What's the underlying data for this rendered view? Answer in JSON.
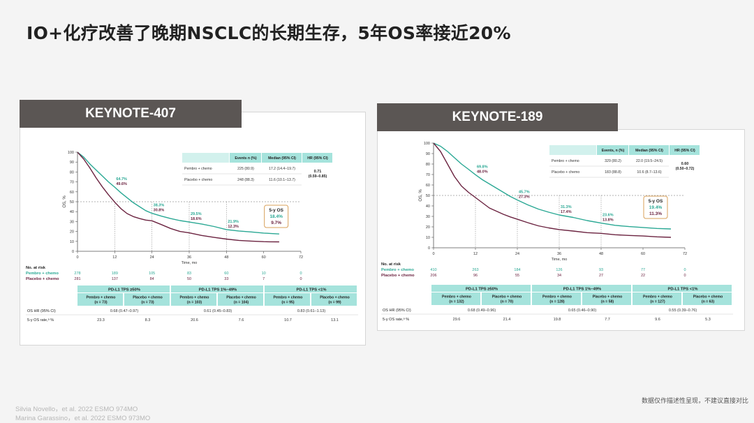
{
  "slide": {
    "title": "IO+化疗改善了晚期NSCLC的长期生存，5年OS率接近20%",
    "disclaimer": "数据仅作描述性呈现，不建议直接对比",
    "references": [
      "Silvia Novello，et al. 2022 ESMO 974MO",
      "Marina Garassino，et al. 2022 ESMO 973MO"
    ]
  },
  "colors": {
    "pembro": "#2aa894",
    "placebo": "#6b2340",
    "tab_bg": "#5b5654",
    "header_bg": "#a5e3dc"
  },
  "chart_data": [
    {
      "type": "line",
      "title": "KEYNOTE-407",
      "xlabel": "Time, mo",
      "ylabel": "OS, %",
      "xlim": [
        0,
        72
      ],
      "ylim": [
        0,
        100
      ],
      "xticks": [
        0,
        12,
        24,
        36,
        48,
        60,
        72
      ],
      "yticks": [
        0,
        10,
        20,
        30,
        40,
        50,
        60,
        70,
        80,
        90,
        100
      ],
      "series": [
        {
          "name": "Pembro + chemo",
          "color": "#2aa894",
          "x": [
            0,
            2,
            4,
            6,
            8,
            10,
            12,
            14,
            16,
            18,
            20,
            22,
            24,
            27,
            30,
            33,
            36,
            40,
            44,
            48,
            52,
            56,
            60,
            62,
            65
          ],
          "y": [
            100,
            95,
            88,
            82,
            76,
            70,
            64.7,
            59,
            54,
            49,
            45,
            41,
            38.3,
            35.5,
            33,
            31,
            29.5,
            27.5,
            25,
            21.9,
            20.5,
            19.5,
            18.4,
            18,
            17.5
          ]
        },
        {
          "name": "Placebo + chemo",
          "color": "#6b2340",
          "x": [
            0,
            2,
            4,
            6,
            8,
            10,
            12,
            14,
            16,
            18,
            20,
            22,
            24,
            27,
            30,
            33,
            36,
            40,
            44,
            48,
            52,
            56,
            60,
            62,
            65
          ],
          "y": [
            100,
            93,
            84,
            74,
            65,
            57,
            49.6,
            43,
            38,
            35,
            33,
            31.5,
            30.8,
            27,
            23,
            20,
            18.6,
            16,
            14,
            12.3,
            11,
            10.3,
            9.7,
            9.6,
            9.5
          ]
        }
      ],
      "annotations": [
        {
          "x": 12,
          "pembro": "64.7%",
          "placebo": "49.6%"
        },
        {
          "x": 24,
          "pembro": "38.3%",
          "placebo": "30.8%"
        },
        {
          "x": 36,
          "pembro": "29.5%",
          "placebo": "18.6%"
        },
        {
          "x": 48,
          "pembro": "21.9%",
          "placebo": "12.3%"
        }
      ],
      "five_year_box": {
        "label": "5-y OS",
        "pembro": "18.4%",
        "placebo": "9.7%"
      },
      "hr_table": {
        "headers": [
          "",
          "Events n (%)",
          "Median (95% CI)",
          "HR (95% CI)"
        ],
        "rows": [
          [
            "Pembro + chemo",
            "225 (80.9)",
            "17.2 (14.4–19.7)"
          ],
          [
            "Placebo + chemo",
            "248 (88.3)",
            "11.6 (10.1–13.7)"
          ]
        ],
        "hr": "0.71",
        "hr_ci": "(0.59–0.85)"
      },
      "risk_table": {
        "title": "No. at risk",
        "rows": [
          {
            "label": "Pembro + chemo",
            "values": [
              "278",
              "189",
              "105",
              "83",
              "60",
              "10",
              "0"
            ]
          },
          {
            "label": "Placebo + chemo",
            "values": [
              "281",
              "137",
              "84",
              "50",
              "33",
              "7",
              "0"
            ]
          }
        ]
      },
      "subgroup_table": {
        "groups": [
          "PD-L1 TPS ≥50%",
          "PD-L1 TPS 1%–49%",
          "PD-L1 TPS <1%"
        ],
        "arms": [
          "Pembro + chemo\n(n = 73)",
          "Placebo + chemo\n(n = 73)",
          "Pembro + chemo\n(n = 103)",
          "Placebo + chemo\n(n = 104)",
          "Pembro + chemo\n(n = 95)",
          "Placebo + chemo\n(n = 99)"
        ],
        "hr_label": "OS HR (95% CI)",
        "hrs": [
          "0.68 (0.47–0.97)",
          "0.61 (0.45–0.83)",
          "0.83 (0.61–1.13)"
        ],
        "rate_label": "5-y OS rate,ᵃ %",
        "rates": [
          "23.3",
          "8.3",
          "20.6",
          "7.6",
          "10.7",
          "13.1"
        ]
      }
    },
    {
      "type": "line",
      "title": "KEYNOTE-189",
      "xlabel": "Time, mo",
      "ylabel": "OS, %",
      "xlim": [
        0,
        72
      ],
      "ylim": [
        0,
        100
      ],
      "xticks": [
        0,
        12,
        24,
        36,
        48,
        60,
        72
      ],
      "yticks": [
        0,
        10,
        20,
        30,
        40,
        50,
        60,
        70,
        80,
        90,
        100
      ],
      "series": [
        {
          "name": "Pembro + chemo",
          "color": "#2aa894",
          "x": [
            0,
            2,
            4,
            6,
            8,
            10,
            12,
            14,
            16,
            18,
            20,
            22,
            24,
            27,
            30,
            33,
            36,
            40,
            44,
            48,
            52,
            56,
            60,
            64,
            68
          ],
          "y": [
            100,
            97,
            92,
            86,
            80,
            75,
            69.8,
            65,
            61,
            57,
            53,
            49,
            45.7,
            41,
            37,
            34,
            31.3,
            29,
            26,
            23.6,
            21.5,
            20.3,
            19.4,
            18.5,
            18
          ]
        },
        {
          "name": "Placebo + chemo",
          "color": "#6b2340",
          "x": [
            0,
            2,
            4,
            6,
            8,
            10,
            12,
            14,
            16,
            18,
            20,
            22,
            24,
            27,
            30,
            33,
            36,
            40,
            44,
            48,
            52,
            56,
            60,
            64,
            68
          ],
          "y": [
            100,
            92,
            80,
            68,
            59,
            53,
            48,
            43,
            38,
            35,
            32,
            29.5,
            27.3,
            24,
            21,
            19,
            17.4,
            16,
            14.5,
            13.8,
            12.5,
            11.8,
            11.3,
            10.5,
            10
          ]
        }
      ],
      "annotations": [
        {
          "x": 12,
          "pembro": "69.8%",
          "placebo": "48.0%"
        },
        {
          "x": 24,
          "pembro": "45.7%",
          "placebo": "27.3%"
        },
        {
          "x": 36,
          "pembro": "31.3%",
          "placebo": "17.4%"
        },
        {
          "x": 48,
          "pembro": "23.6%",
          "placebo": "13.8%"
        }
      ],
      "five_year_box": {
        "label": "5-y OS",
        "pembro": "19.4%",
        "placebo": "11.3%"
      },
      "hr_table": {
        "headers": [
          "",
          "Events, n (%)",
          "Median (95% CI)",
          "HR (95% CI)"
        ],
        "rows": [
          [
            "Pembro + chemo",
            "329 (80.2)",
            "22.0 (19.5–24.5)"
          ],
          [
            "Placebo + chemo",
            "183 (88.8)",
            "10.6 (8.7–13.6)"
          ]
        ],
        "hr": "0.60",
        "hr_ci": "(0.50–0.72)"
      },
      "risk_table": {
        "title": "No. at risk",
        "rows": [
          {
            "label": "Pembro + chemo",
            "values": [
              "410",
              "263",
              "184",
              "126",
              "93",
              "77",
              "0"
            ]
          },
          {
            "label": "Placebo + chemo",
            "values": [
              "206",
              "96",
              "55",
              "34",
              "27",
              "22",
              "0"
            ]
          }
        ]
      },
      "subgroup_table": {
        "groups": [
          "PD-L1 TPS ≥50%",
          "PD-L1 TPS 1%–49%",
          "PD-L1 TPS <1%"
        ],
        "arms": [
          "Pembro + chemo\n(n = 132)",
          "Placebo + chemo\n(n = 70)",
          "Pembro + chemo\n(n = 128)",
          "Placebo + chemo\n(n = 58)",
          "Pembro + chemo\n(n = 127)",
          "Placebo + chemo\n(n = 63)"
        ],
        "hr_label": "OS HR (95% CI)",
        "hrs": [
          "0.68 (0.49–0.96)",
          "0.65 (0.46–0.90)",
          "0.55 (0.39–0.76)"
        ],
        "rate_label": "5-y OS rate,ᵃ %",
        "rates": [
          "29.6",
          "21.4",
          "19.8",
          "7.7",
          "9.6",
          "5.3"
        ]
      }
    }
  ]
}
